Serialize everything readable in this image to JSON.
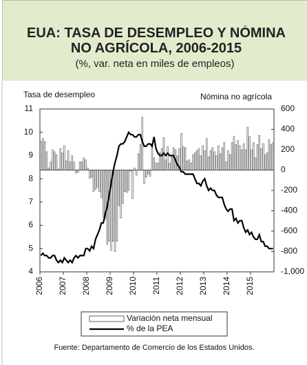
{
  "chart_data": {
    "type": "bar_line",
    "title_lines": [
      "EUA: TASA DE DESEMPLEO Y NÓMINA",
      "NO AGRÍCOLA, 2006-2015"
    ],
    "subtitle": "(%, var. neta en miles de empleos)",
    "y_label": "Tasa de desempleo",
    "y2_label": "Nómina no agrícola",
    "source": "Fuente: Departamento de Comercio de los Estados Unidos.",
    "categories": [
      "2006",
      null,
      null,
      null,
      null,
      null,
      null,
      null,
      null,
      null,
      null,
      null,
      "2007",
      null,
      null,
      null,
      null,
      null,
      null,
      null,
      null,
      null,
      null,
      null,
      "2008",
      null,
      null,
      null,
      null,
      null,
      null,
      null,
      null,
      null,
      null,
      null,
      "2009",
      null,
      null,
      null,
      null,
      null,
      null,
      null,
      null,
      null,
      null,
      null,
      "2010",
      null,
      null,
      null,
      null,
      null,
      null,
      null,
      null,
      null,
      null,
      null,
      "2011",
      null,
      null,
      null,
      null,
      null,
      null,
      null,
      null,
      null,
      null,
      null,
      "2012",
      null,
      null,
      null,
      null,
      null,
      null,
      null,
      null,
      null,
      null,
      null,
      "2013",
      null,
      null,
      null,
      null,
      null,
      null,
      null,
      null,
      null,
      null,
      null,
      "2014",
      null,
      null,
      null,
      null,
      null,
      null,
      null,
      null,
      null,
      null,
      null,
      "2015",
      null,
      null,
      null,
      null,
      null,
      null,
      null,
      null,
      null,
      null,
      null
    ],
    "series": [
      {
        "name": "Variación neta mensual",
        "color": "#ffffff",
        "axis": "y2",
        "values": [
          280,
          310,
          280,
          180,
          20,
          80,
          200,
          180,
          150,
          10,
          210,
          170,
          240,
          90,
          190,
          80,
          140,
          80,
          -30,
          -20,
          80,
          80,
          120,
          100,
          20,
          -80,
          -70,
          -210,
          -190,
          -170,
          -210,
          -270,
          -460,
          -480,
          -730,
          -700,
          -790,
          -700,
          -800,
          -700,
          -350,
          -470,
          -330,
          -210,
          -220,
          -200,
          -10,
          -280,
          20,
          -50,
          160,
          250,
          520,
          -130,
          -70,
          -40,
          -60,
          260,
          120,
          70,
          70,
          170,
          210,
          320,
          100,
          230,
          70,
          130,
          220,
          200,
          140,
          210,
          360,
          230,
          220,
          90,
          100,
          70,
          150,
          170,
          190,
          210,
          140,
          240,
          190,
          310,
          130,
          190,
          220,
          180,
          140,
          240,
          160,
          220,
          270,
          80,
          190,
          150,
          270,
          330,
          250,
          290,
          240,
          200,
          260,
          200,
          420,
          330,
          200,
          270,
          120,
          250,
          340,
          210,
          260,
          150,
          170,
          300,
          250,
          270
        ]
      },
      {
        "name": "% de la PEA",
        "color": "#000000",
        "axis": "y",
        "values": [
          4.7,
          4.8,
          4.7,
          4.7,
          4.6,
          4.6,
          4.7,
          4.7,
          4.5,
          4.4,
          4.5,
          4.4,
          4.6,
          4.5,
          4.4,
          4.5,
          4.4,
          4.6,
          4.7,
          4.6,
          4.7,
          4.7,
          4.7,
          5.0,
          5.0,
          4.9,
          5.1,
          5.0,
          5.4,
          5.6,
          5.8,
          6.1,
          6.1,
          6.5,
          6.8,
          7.3,
          7.8,
          8.3,
          8.7,
          9.0,
          9.4,
          9.5,
          9.5,
          9.6,
          9.8,
          10.0,
          9.9,
          9.9,
          9.8,
          9.8,
          9.9,
          9.9,
          9.6,
          9.4,
          9.4,
          9.5,
          9.5,
          9.4,
          9.8,
          9.3,
          9.1,
          9.0,
          9.0,
          9.1,
          9.0,
          9.1,
          9.0,
          9.0,
          9.0,
          8.8,
          8.6,
          8.5,
          8.3,
          8.3,
          8.2,
          8.2,
          8.2,
          8.2,
          8.2,
          8.0,
          7.8,
          7.8,
          7.7,
          7.9,
          8.0,
          7.7,
          7.5,
          7.6,
          7.5,
          7.5,
          7.3,
          7.2,
          7.2,
          7.2,
          6.9,
          6.7,
          6.6,
          6.7,
          6.7,
          6.2,
          6.3,
          6.1,
          6.2,
          6.2,
          5.9,
          5.7,
          5.8,
          5.6,
          5.7,
          5.5,
          5.4,
          5.4,
          5.6,
          5.3,
          5.3,
          5.1,
          5.1,
          5.0,
          5.0,
          5.0
        ]
      }
    ],
    "ylim": [
      4,
      11
    ],
    "yticks": [
      4,
      5,
      6,
      7,
      8,
      9,
      10,
      11
    ],
    "y2lim": [
      -1000,
      600
    ],
    "y2ticks": [
      {
        "value": -1000,
        "label": "-1,000"
      },
      -800,
      -600,
      -400,
      -200,
      0,
      200,
      400,
      600
    ]
  }
}
